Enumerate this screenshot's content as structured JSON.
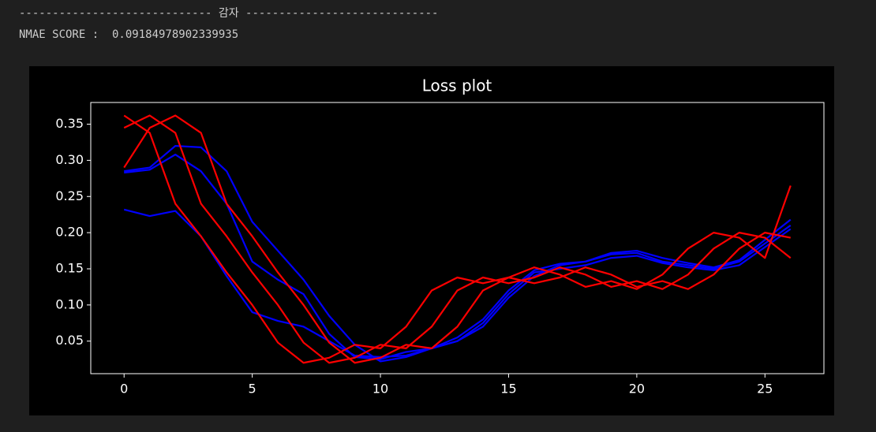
{
  "output": {
    "divider": "----------------------------- 감자 -----------------------------",
    "score_line": "NMAE SCORE :  0.09184978902339935"
  },
  "chart_data": {
    "type": "line",
    "title": "Loss plot",
    "x": [
      0,
      1,
      2,
      3,
      4,
      5,
      6,
      7,
      8,
      9,
      10,
      11,
      12,
      13,
      14,
      15,
      16,
      17,
      18,
      19,
      20,
      21,
      22,
      23,
      24,
      25,
      26
    ],
    "series": [
      {
        "color": "blue",
        "values": [
          0.232,
          0.223,
          0.23,
          0.195,
          0.14,
          0.09,
          0.078,
          0.07,
          0.05,
          0.03,
          0.028,
          0.03,
          0.04,
          0.05,
          0.07,
          0.11,
          0.14,
          0.155,
          0.16,
          0.17,
          0.172,
          0.16,
          0.155,
          0.15,
          0.16,
          0.185,
          0.21
        ]
      },
      {
        "color": "blue",
        "values": [
          0.283,
          0.287,
          0.308,
          0.285,
          0.24,
          0.16,
          0.135,
          0.115,
          0.06,
          0.028,
          0.025,
          0.035,
          0.04,
          0.05,
          0.075,
          0.115,
          0.145,
          0.15,
          0.155,
          0.165,
          0.168,
          0.158,
          0.152,
          0.148,
          0.155,
          0.18,
          0.205
        ]
      },
      {
        "color": "blue",
        "values": [
          0.285,
          0.29,
          0.32,
          0.318,
          0.285,
          0.215,
          0.175,
          0.135,
          0.085,
          0.045,
          0.022,
          0.028,
          0.04,
          0.055,
          0.08,
          0.12,
          0.148,
          0.157,
          0.16,
          0.172,
          0.175,
          0.165,
          0.158,
          0.152,
          0.162,
          0.19,
          0.218
        ]
      },
      {
        "color": "red",
        "values": [
          0.29,
          0.345,
          0.362,
          0.338,
          0.24,
          0.195,
          0.145,
          0.1,
          0.048,
          0.02,
          0.027,
          0.045,
          0.04,
          0.07,
          0.12,
          0.138,
          0.13,
          0.138,
          0.152,
          0.142,
          0.125,
          0.133,
          0.122,
          0.142,
          0.178,
          0.2,
          0.193
        ]
      },
      {
        "color": "red",
        "values": [
          0.345,
          0.362,
          0.338,
          0.24,
          0.195,
          0.145,
          0.1,
          0.048,
          0.02,
          0.027,
          0.045,
          0.04,
          0.07,
          0.12,
          0.138,
          0.13,
          0.138,
          0.152,
          0.142,
          0.125,
          0.133,
          0.122,
          0.142,
          0.178,
          0.2,
          0.193,
          0.165
        ]
      },
      {
        "color": "red",
        "values": [
          0.362,
          0.338,
          0.24,
          0.195,
          0.145,
          0.1,
          0.048,
          0.02,
          0.027,
          0.045,
          0.04,
          0.07,
          0.12,
          0.138,
          0.13,
          0.138,
          0.152,
          0.142,
          0.125,
          0.133,
          0.122,
          0.142,
          0.178,
          0.2,
          0.193,
          0.165,
          0.265
        ]
      }
    ],
    "xlim": [
      -1.3,
      27.3
    ],
    "xticks": [
      0,
      5,
      10,
      15,
      20,
      25
    ],
    "ylim": [
      0.005,
      0.38
    ],
    "yticks": [
      0.05,
      {
        "value": 0.1,
        "label": "0.10"
      },
      0.15,
      {
        "value": 0.2,
        "label": "0.20"
      },
      0.25,
      {
        "value": 0.3,
        "label": "0.30"
      },
      0.35
    ]
  }
}
